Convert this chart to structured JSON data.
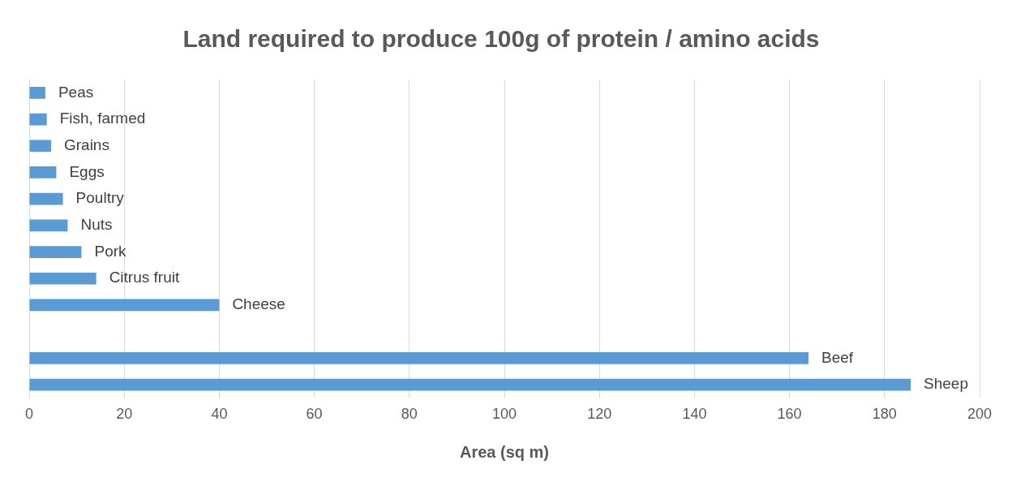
{
  "chart_data": {
    "type": "bar",
    "orientation": "horizontal",
    "title": "Land required to produce 100g of protein / amino acids",
    "xlabel": "Area (sq m)",
    "categories": [
      "Peas",
      "Fish, farmed",
      "Grains",
      "Eggs",
      "Poultry",
      "Nuts",
      "Pork",
      "Citrus fruit",
      "Cheese",
      null,
      "Beef",
      "Sheep"
    ],
    "values": [
      3.4,
      3.7,
      4.6,
      5.7,
      7.1,
      8.1,
      11,
      14.1,
      40,
      null,
      164,
      185.5
    ],
    "color": "#5b9bd5",
    "xlim": [
      0,
      200
    ],
    "xticks": [
      0,
      20,
      40,
      60,
      80,
      100,
      120,
      140,
      160,
      180,
      200
    ],
    "grid": "x",
    "legend": false,
    "tick_labels": "x"
  }
}
